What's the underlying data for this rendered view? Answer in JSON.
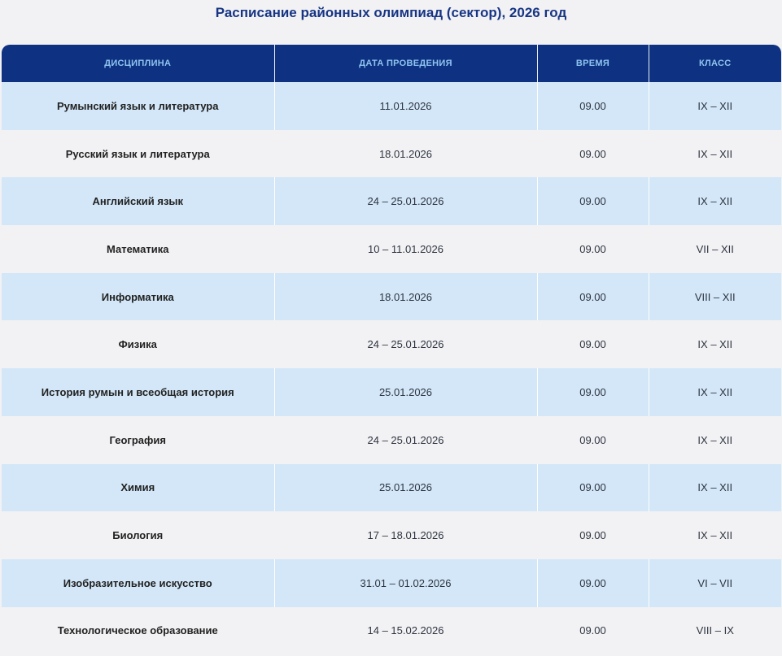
{
  "title": "Расписание районных олимпиад (сектор), 2026 год",
  "headers": [
    "Дисциплина",
    "Дата проведения",
    "Время",
    "Класс"
  ],
  "rows": [
    [
      "Румынский язык и литература",
      "11.01.2026",
      "09.00",
      "IX – XII"
    ],
    [
      "Русский язык и литература",
      "18.01.2026",
      "09.00",
      "IX – XII"
    ],
    [
      "Английский язык",
      "24 – 25.01.2026",
      "09.00",
      "IX – XII"
    ],
    [
      "Математика",
      "10 – 11.01.2026",
      "09.00",
      "VII – XII"
    ],
    [
      "Информатика",
      "18.01.2026",
      "09.00",
      "VIII – XII"
    ],
    [
      "Физика",
      "24 – 25.01.2026",
      "09.00",
      "IX – XII"
    ],
    [
      "История румын и всеобщая история",
      "25.01.2026",
      "09.00",
      "IX – XII"
    ],
    [
      "География",
      "24 – 25.01.2026",
      "09.00",
      "IX – XII"
    ],
    [
      "Химия",
      "25.01.2026",
      "09.00",
      "IX – XII"
    ],
    [
      "Биология",
      "17 – 18.01.2026",
      "09.00",
      "IX – XII"
    ],
    [
      "Изобразительное искусство",
      "31.01 – 01.02.2026",
      "09.00",
      "VI – VII"
    ],
    [
      "Технологическое образование",
      "14 – 15.02.2026",
      "09.00",
      "VIII – IX"
    ]
  ]
}
